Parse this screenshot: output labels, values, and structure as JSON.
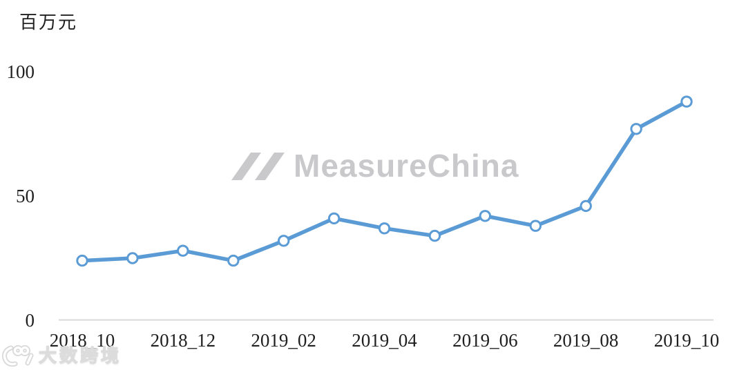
{
  "chart_data": {
    "type": "line",
    "title": "",
    "ylabel": "百万元",
    "xlabel": "",
    "x": [
      "2018_10",
      "2018_11",
      "2018_12",
      "2019_01",
      "2019_02",
      "2019_03",
      "2019_04",
      "2019_05",
      "2019_06",
      "2019_07",
      "2019_08",
      "2019_09",
      "2019_10"
    ],
    "visible_x_tick_labels": [
      "2018_10",
      "2018_12",
      "2019_02",
      "2019_04",
      "2019_06",
      "2019_08",
      "2019_10"
    ],
    "series": [
      {
        "name": "",
        "values": [
          24,
          25,
          28,
          24,
          32,
          41,
          37,
          34,
          42,
          38,
          46,
          77,
          88
        ]
      }
    ],
    "y_ticks": [
      0,
      50,
      100
    ],
    "ylim": [
      0,
      100
    ],
    "grid": false,
    "legend": "none",
    "line_color": "#5b9bd5",
    "marker_style": "circle-white-fill"
  },
  "watermarks": {
    "center": {
      "logo": "double-slash-mountain-icon",
      "text": "MeasureChina",
      "color": "#c9c9cb"
    },
    "bottom_left": {
      "logo": "dashu-100-icon",
      "text": "大数跨境"
    }
  },
  "colors": {
    "axis_line": "#d9d9d9",
    "label_text": "#1f1f1f",
    "background": "#ffffff"
  }
}
